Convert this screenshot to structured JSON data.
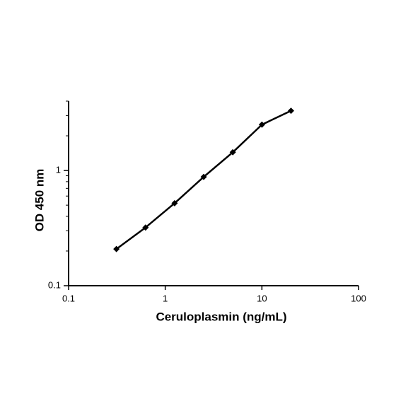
{
  "chart_data": {
    "type": "line",
    "xlabel": "Ceruloplasmin (ng/mL)",
    "ylabel": "OD 450 nm",
    "x": [
      0.3125,
      0.625,
      1.25,
      2.5,
      5,
      10,
      20
    ],
    "series": [
      {
        "color": "#000000",
        "values": [
          0.208,
          0.32,
          0.52,
          0.88,
          1.44,
          2.5,
          3.3
        ]
      }
    ],
    "xscale": "log",
    "yscale": "log",
    "xlim": [
      0.1,
      100
    ],
    "ylim": [
      0.1,
      4
    ],
    "xticks": [
      0.1,
      1,
      10,
      100
    ],
    "yticks": [
      0.1,
      1
    ],
    "yminor_ticks": [
      0.2,
      0.3,
      0.4,
      0.5,
      0.6,
      0.7,
      0.8,
      0.9,
      2,
      3,
      4
    ],
    "grid": false
  }
}
